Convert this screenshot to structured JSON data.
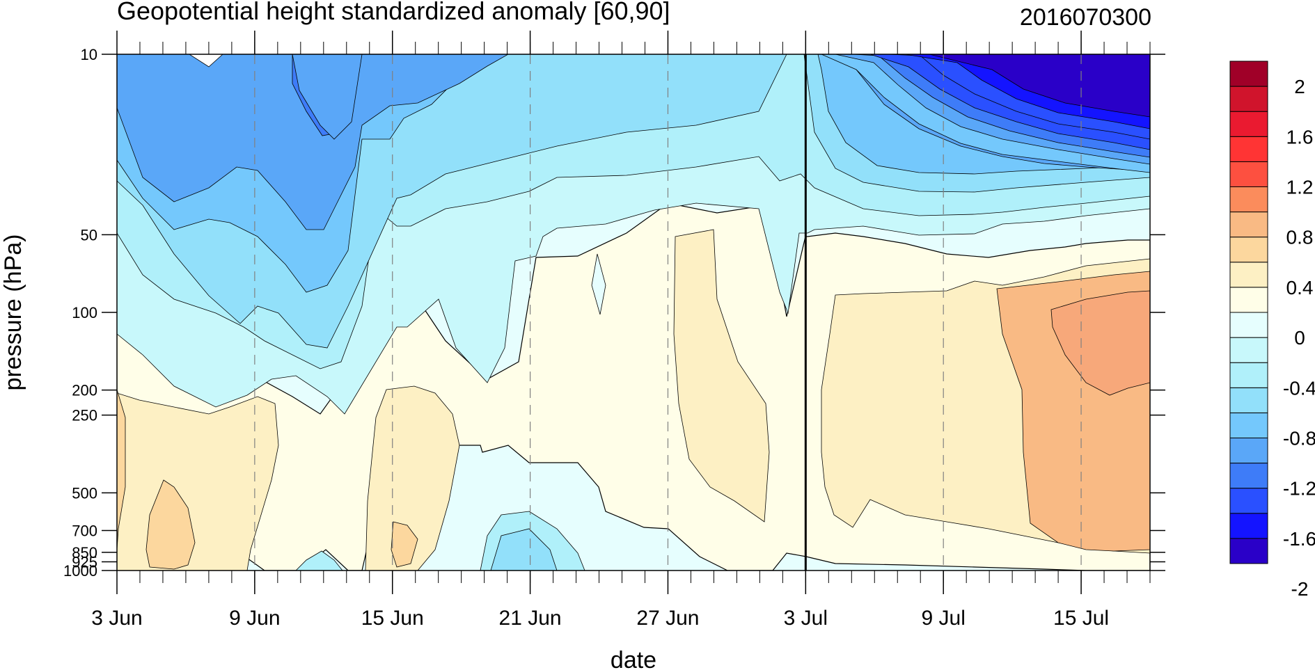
{
  "chart_data": {
    "type": "heatmap",
    "title": "Geopotential height standardized anomaly [60,90]",
    "init_label": "2016070300",
    "xlabel": "date",
    "ylabel": "pressure (hPa)",
    "y_scale": "log",
    "ylim": [
      1000,
      10
    ],
    "y_ticks": [
      {
        "value": 10,
        "label": "10"
      },
      {
        "value": 50,
        "label": "50"
      },
      {
        "value": 100,
        "label": "100"
      },
      {
        "value": 200,
        "label": "200"
      },
      {
        "value": 250,
        "label": "250"
      },
      {
        "value": 500,
        "label": "500"
      },
      {
        "value": 700,
        "label": "700"
      },
      {
        "value": 850,
        "label": "850"
      },
      {
        "value": 925,
        "label": "925"
      },
      {
        "value": 1000,
        "label": "1000"
      }
    ],
    "xlim": [
      "2016-06-03",
      "2016-07-18"
    ],
    "x_ticks": [
      {
        "date": "2016-06-03",
        "label": "3 Jun"
      },
      {
        "date": "2016-06-09",
        "label": "9 Jun"
      },
      {
        "date": "2016-06-15",
        "label": "15 Jun"
      },
      {
        "date": "2016-06-21",
        "label": "21 Jun"
      },
      {
        "date": "2016-06-27",
        "label": "27 Jun"
      },
      {
        "date": "2016-07-03",
        "label": "3 Jul"
      },
      {
        "date": "2016-07-09",
        "label": "9 Jul"
      },
      {
        "date": "2016-07-15",
        "label": "15 Jul"
      }
    ],
    "forecast_start": "2016-07-03",
    "grid": "dashed vertical at labeled dates",
    "contour_interval": 0.2,
    "levels": [
      -2.2,
      -2.0,
      -1.8,
      -1.6,
      -1.4,
      -1.2,
      -1.0,
      -0.8,
      -0.6,
      -0.4,
      -0.2,
      0,
      0.2,
      0.4,
      0.6,
      0.8,
      1.0,
      1.2,
      1.4,
      1.6,
      1.8,
      2.0,
      2.2
    ],
    "colorbar_labels": [
      "2",
      "1.6",
      "1.2",
      "0.8",
      "0.4",
      "0",
      "-0.4",
      "-0.8",
      "-1.2",
      "-1.6",
      "-2"
    ],
    "colors": [
      "#2a00c8",
      "#1414ff",
      "#2a50ff",
      "#3e7cf8",
      "#5aa7f8",
      "#74c8fc",
      "#92e0fa",
      "#b0f0fa",
      "#c8f8fb",
      "#e6fefe",
      "#fffee8",
      "#fdf0c4",
      "#fcd79e",
      "#f9ba84",
      "#fb8c5c",
      "#fd5040",
      "#ff3434",
      "#ea1a30",
      "#d0142c",
      "#a00028"
    ],
    "series_samples": [
      {
        "date": "2016-06-03",
        "profile": [
          {
            "p": 10,
            "v": -0.8
          },
          {
            "p": 50,
            "v": -0.4
          },
          {
            "p": 100,
            "v": 0.0
          },
          {
            "p": 250,
            "v": 0.2
          },
          {
            "p": 500,
            "v": 0.3
          },
          {
            "p": 1000,
            "v": 0.3
          }
        ]
      },
      {
        "date": "2016-06-12",
        "profile": [
          {
            "p": 10,
            "v": -1.2
          },
          {
            "p": 50,
            "v": -0.8
          },
          {
            "p": 100,
            "v": -0.6
          },
          {
            "p": 250,
            "v": -0.1
          },
          {
            "p": 500,
            "v": 0.1
          },
          {
            "p": 1000,
            "v": -0.3
          }
        ]
      },
      {
        "date": "2016-06-27",
        "profile": [
          {
            "p": 10,
            "v": -0.4
          },
          {
            "p": 50,
            "v": 0.1
          },
          {
            "p": 100,
            "v": 0.3
          },
          {
            "p": 250,
            "v": 0.3
          },
          {
            "p": 500,
            "v": 0.1
          },
          {
            "p": 1000,
            "v": 0.0
          }
        ]
      },
      {
        "date": "2016-07-15",
        "profile": [
          {
            "p": 10,
            "v": -2.2
          },
          {
            "p": 50,
            "v": -0.2
          },
          {
            "p": 100,
            "v": 0.5
          },
          {
            "p": 250,
            "v": 0.5
          },
          {
            "p": 500,
            "v": 0.4
          },
          {
            "p": 1000,
            "v": 0.1
          }
        ]
      }
    ]
  }
}
